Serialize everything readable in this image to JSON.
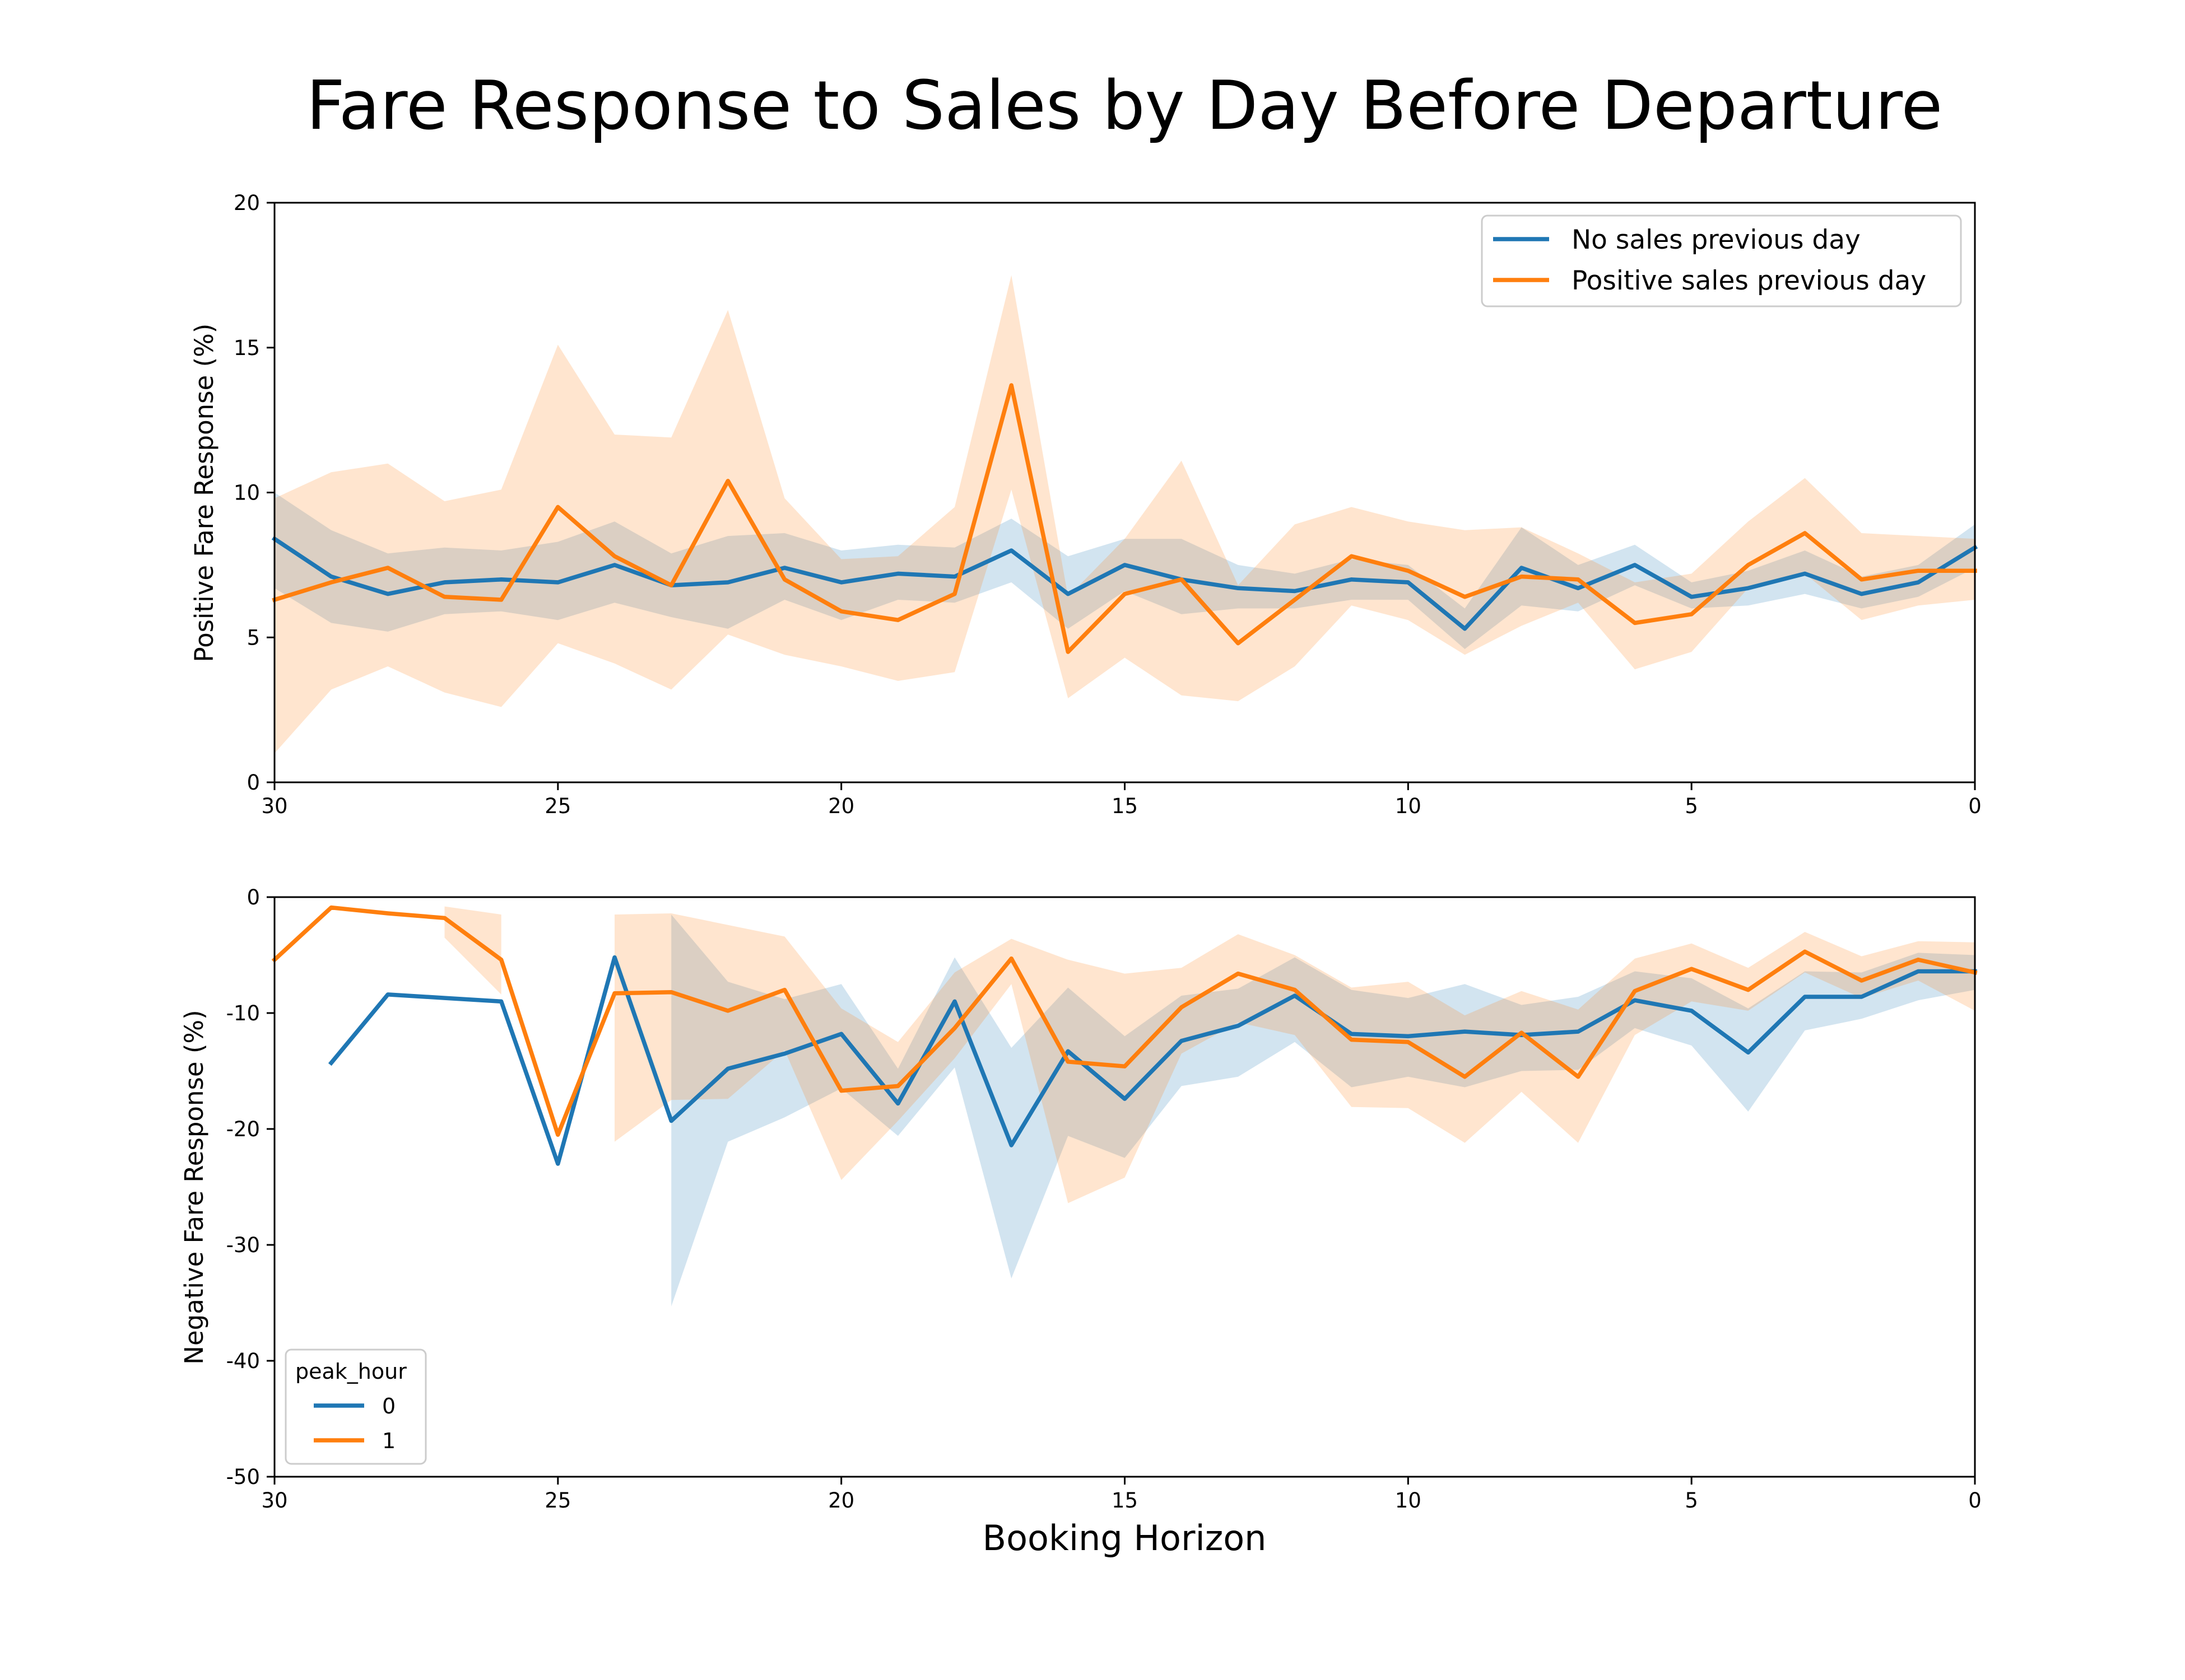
{
  "figure": {
    "title": "Fare Response to Sales by Day Before Departure",
    "xlabel": "Booking Horizon"
  },
  "colors": {
    "blue": "#1f77b4",
    "orange": "#ff7f0e"
  },
  "chart_data": [
    {
      "type": "line",
      "ylabel": "Positive Fare Response (%)",
      "xlim": [
        30,
        0
      ],
      "ylim": [
        0,
        20
      ],
      "xticks": [
        30,
        25,
        20,
        15,
        10,
        5,
        0
      ],
      "yticks": [
        0,
        5,
        10,
        15,
        20
      ],
      "legend": {
        "position": "upper right",
        "title": ""
      },
      "x": [
        30,
        29,
        28,
        27,
        26,
        25,
        24,
        23,
        22,
        21,
        20,
        19,
        18,
        17,
        16,
        15,
        14,
        13,
        12,
        11,
        10,
        9,
        8,
        7,
        6,
        5,
        4,
        3,
        2,
        1,
        0
      ],
      "series": [
        {
          "name": "No sales previous day",
          "color": "#1f77b4",
          "values": [
            8.4,
            7.1,
            6.5,
            6.9,
            7.0,
            6.9,
            7.5,
            6.8,
            6.9,
            7.4,
            6.9,
            7.2,
            7.1,
            8.0,
            6.5,
            7.5,
            7.0,
            6.7,
            6.6,
            7.0,
            6.9,
            5.3,
            7.4,
            6.7,
            7.5,
            6.4,
            6.7,
            7.2,
            6.5,
            6.9,
            8.1
          ],
          "lower": [
            6.7,
            5.5,
            5.2,
            5.8,
            5.9,
            5.6,
            6.2,
            5.7,
            5.3,
            6.3,
            5.6,
            6.3,
            6.2,
            6.9,
            5.3,
            6.6,
            5.8,
            6.0,
            6.0,
            6.3,
            6.3,
            4.6,
            6.1,
            5.9,
            6.8,
            6.0,
            6.1,
            6.5,
            6.0,
            6.4,
            7.4
          ],
          "upper": [
            10.0,
            8.7,
            7.9,
            8.1,
            8.0,
            8.3,
            9.0,
            7.9,
            8.5,
            8.6,
            8.0,
            8.2,
            8.1,
            9.1,
            7.8,
            8.4,
            8.4,
            7.5,
            7.2,
            7.7,
            7.5,
            6.0,
            8.8,
            7.5,
            8.2,
            6.9,
            7.3,
            8.0,
            7.1,
            7.5,
            8.9
          ]
        },
        {
          "name": "Positive sales previous day",
          "color": "#ff7f0e",
          "values": [
            6.3,
            6.9,
            7.4,
            6.4,
            6.3,
            9.5,
            7.8,
            6.8,
            10.4,
            7.0,
            5.9,
            5.6,
            6.5,
            13.7,
            4.5,
            6.5,
            7.0,
            4.8,
            6.3,
            7.8,
            7.3,
            6.4,
            7.1,
            7.0,
            5.5,
            5.8,
            7.5,
            8.6,
            7.0,
            7.3,
            7.3
          ],
          "lower": [
            1.0,
            3.2,
            4.0,
            3.1,
            2.6,
            4.8,
            4.1,
            3.2,
            5.1,
            4.4,
            4.0,
            3.5,
            3.8,
            10.1,
            2.9,
            4.3,
            3.0,
            2.8,
            4.0,
            6.1,
            5.6,
            4.4,
            5.4,
            6.2,
            3.9,
            4.5,
            6.7,
            7.2,
            5.6,
            6.1,
            6.3
          ],
          "upper": [
            9.8,
            10.7,
            11.0,
            9.7,
            10.1,
            15.1,
            12.0,
            11.9,
            16.3,
            9.8,
            7.7,
            7.8,
            9.5,
            17.5,
            6.4,
            8.4,
            11.1,
            6.8,
            8.9,
            9.5,
            9.0,
            8.7,
            8.8,
            7.9,
            6.9,
            7.2,
            9.0,
            10.5,
            8.6,
            8.5,
            8.4
          ]
        }
      ]
    },
    {
      "type": "line",
      "ylabel": "Negative Fare Response (%)",
      "xlim": [
        30,
        0
      ],
      "ylim": [
        -50,
        0
      ],
      "xticks": [
        30,
        25,
        20,
        15,
        10,
        5,
        0
      ],
      "yticks": [
        0,
        -10,
        -20,
        -30,
        -40,
        -50
      ],
      "legend": {
        "position": "lower left",
        "title": "peak_hour"
      },
      "x": [
        30,
        29,
        28,
        27,
        26,
        25,
        24,
        23,
        22,
        21,
        20,
        19,
        18,
        17,
        16,
        15,
        14,
        13,
        12,
        11,
        10,
        9,
        8,
        7,
        6,
        5,
        4,
        3,
        2,
        1,
        0
      ],
      "series": [
        {
          "name": "0",
          "color": "#1f77b4",
          "values": [
            null,
            -14.3,
            -8.4,
            -8.7,
            -9.0,
            -23.0,
            -5.2,
            -19.3,
            -14.8,
            -13.5,
            -11.8,
            -17.8,
            -9.0,
            -21.4,
            -13.3,
            -17.4,
            -12.4,
            -11.1,
            -8.5,
            -11.8,
            -12.0,
            -11.6,
            -11.9,
            -11.6,
            -8.9,
            -9.8,
            -13.4,
            -8.6,
            -8.6,
            -6.4,
            -6.4
          ],
          "lower": [
            null,
            null,
            null,
            null,
            null,
            -24.8,
            null,
            -35.3,
            -21.1,
            -19.0,
            -16.5,
            -20.6,
            -14.7,
            -32.9,
            -20.6,
            -22.5,
            -16.3,
            -15.5,
            -12.5,
            -16.4,
            -15.5,
            -16.4,
            -15.0,
            -14.9,
            -11.3,
            -12.8,
            -18.5,
            -11.5,
            -10.5,
            -8.9,
            -8.0
          ],
          "upper": [
            null,
            null,
            null,
            null,
            null,
            -21.5,
            null,
            -1.5,
            -7.3,
            -8.8,
            -7.5,
            -14.8,
            -5.2,
            -13.0,
            -7.8,
            -12.0,
            -8.5,
            -7.9,
            -5.2,
            -8.0,
            -8.7,
            -7.5,
            -9.3,
            -8.6,
            -6.4,
            -7.0,
            -9.6,
            -6.4,
            -6.5,
            -4.8,
            -5.0
          ]
        },
        {
          "name": "1",
          "color": "#ff7f0e",
          "values": [
            -5.4,
            -0.9,
            -1.4,
            -1.8,
            -5.4,
            -20.5,
            -8.3,
            -8.2,
            -9.8,
            -8.0,
            -16.7,
            -16.3,
            -11.3,
            -5.3,
            -14.2,
            -14.6,
            -9.5,
            -6.6,
            -8.0,
            -12.3,
            -12.5,
            -15.5,
            -11.7,
            -15.5,
            -8.1,
            -6.2,
            -8.0,
            -4.7,
            -7.2,
            -5.4,
            -6.5
          ],
          "lower": [
            null,
            null,
            null,
            -3.5,
            -8.4,
            null,
            -21.1,
            -17.5,
            -17.4,
            -13.2,
            -24.4,
            -19.3,
            -13.9,
            -7.5,
            -26.4,
            -24.2,
            -13.5,
            -10.8,
            -11.9,
            -18.1,
            -18.2,
            -21.2,
            -16.8,
            -21.2,
            -11.9,
            -9.0,
            -9.8,
            -6.5,
            -8.7,
            -7.2,
            -9.8
          ],
          "upper": [
            null,
            null,
            null,
            -0.8,
            -1.5,
            null,
            -1.5,
            -1.4,
            -2.4,
            -3.4,
            -9.6,
            -12.5,
            -6.5,
            -3.6,
            -5.4,
            -6.6,
            -6.1,
            -3.2,
            -5.0,
            -7.8,
            -7.3,
            -10.2,
            -8.1,
            -9.7,
            -5.3,
            -4.0,
            -6.1,
            -3.0,
            -5.1,
            -3.8,
            -3.9
          ]
        }
      ]
    }
  ]
}
